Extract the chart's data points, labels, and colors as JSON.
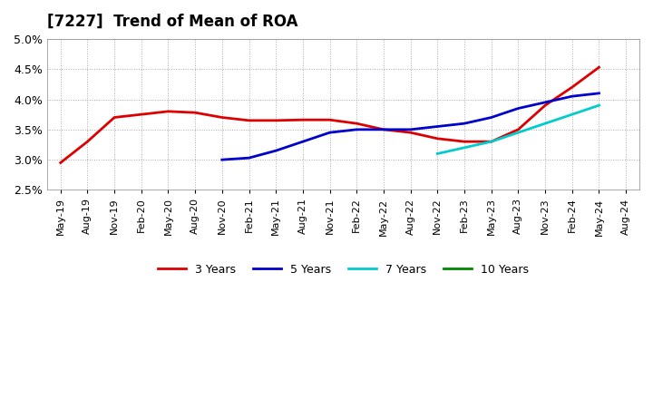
{
  "title": "[7227]  Trend of Mean of ROA",
  "ylim": [
    0.025,
    0.05
  ],
  "yticks": [
    0.025,
    0.03,
    0.035,
    0.04,
    0.045,
    0.05
  ],
  "ytick_labels": [
    "2.5%",
    "3.0%",
    "3.5%",
    "4.0%",
    "4.5%",
    "5.0%"
  ],
  "background_color": "#ffffff",
  "grid_color": "#aaaaaa",
  "xtick_labels": [
    "May-19",
    "Aug-19",
    "Nov-19",
    "Feb-20",
    "May-20",
    "Aug-20",
    "Nov-20",
    "Feb-21",
    "May-21",
    "Aug-21",
    "Nov-21",
    "Feb-22",
    "May-22",
    "Aug-22",
    "Nov-22",
    "Feb-23",
    "May-23",
    "Aug-23",
    "Nov-23",
    "Feb-24",
    "May-24",
    "Aug-24"
  ],
  "series": {
    "3 Years": {
      "color": "#dd0000",
      "xi": [
        0,
        1,
        2,
        3,
        4,
        5,
        6,
        7,
        8,
        9,
        10,
        11,
        12,
        13,
        14,
        15,
        16,
        17,
        18,
        19,
        20
      ],
      "y": [
        0.0295,
        0.033,
        0.037,
        0.0375,
        0.038,
        0.0378,
        0.037,
        0.0365,
        0.0365,
        0.0366,
        0.0366,
        0.036,
        0.035,
        0.0345,
        0.0335,
        0.033,
        0.033,
        0.035,
        0.039,
        0.042,
        0.0453
      ]
    },
    "5 Years": {
      "color": "#0000cc",
      "xi": [
        6,
        7,
        8,
        9,
        10,
        11,
        12,
        13,
        14,
        15,
        16,
        17,
        18,
        19,
        20
      ],
      "y": [
        0.03,
        0.0303,
        0.0315,
        0.033,
        0.0345,
        0.035,
        0.035,
        0.035,
        0.0355,
        0.036,
        0.037,
        0.0385,
        0.0395,
        0.0405,
        0.041
      ]
    },
    "7 Years": {
      "color": "#00cccc",
      "xi": [
        14,
        15,
        16,
        17,
        18,
        19,
        20
      ],
      "y": [
        0.031,
        0.032,
        0.033,
        0.0345,
        0.036,
        0.0375,
        0.039
      ]
    },
    "10 Years": {
      "color": "#008800",
      "xi": [],
      "y": []
    }
  },
  "legend_labels": [
    "3 Years",
    "5 Years",
    "7 Years",
    "10 Years"
  ],
  "legend_colors": [
    "#dd0000",
    "#0000cc",
    "#00cccc",
    "#008800"
  ]
}
